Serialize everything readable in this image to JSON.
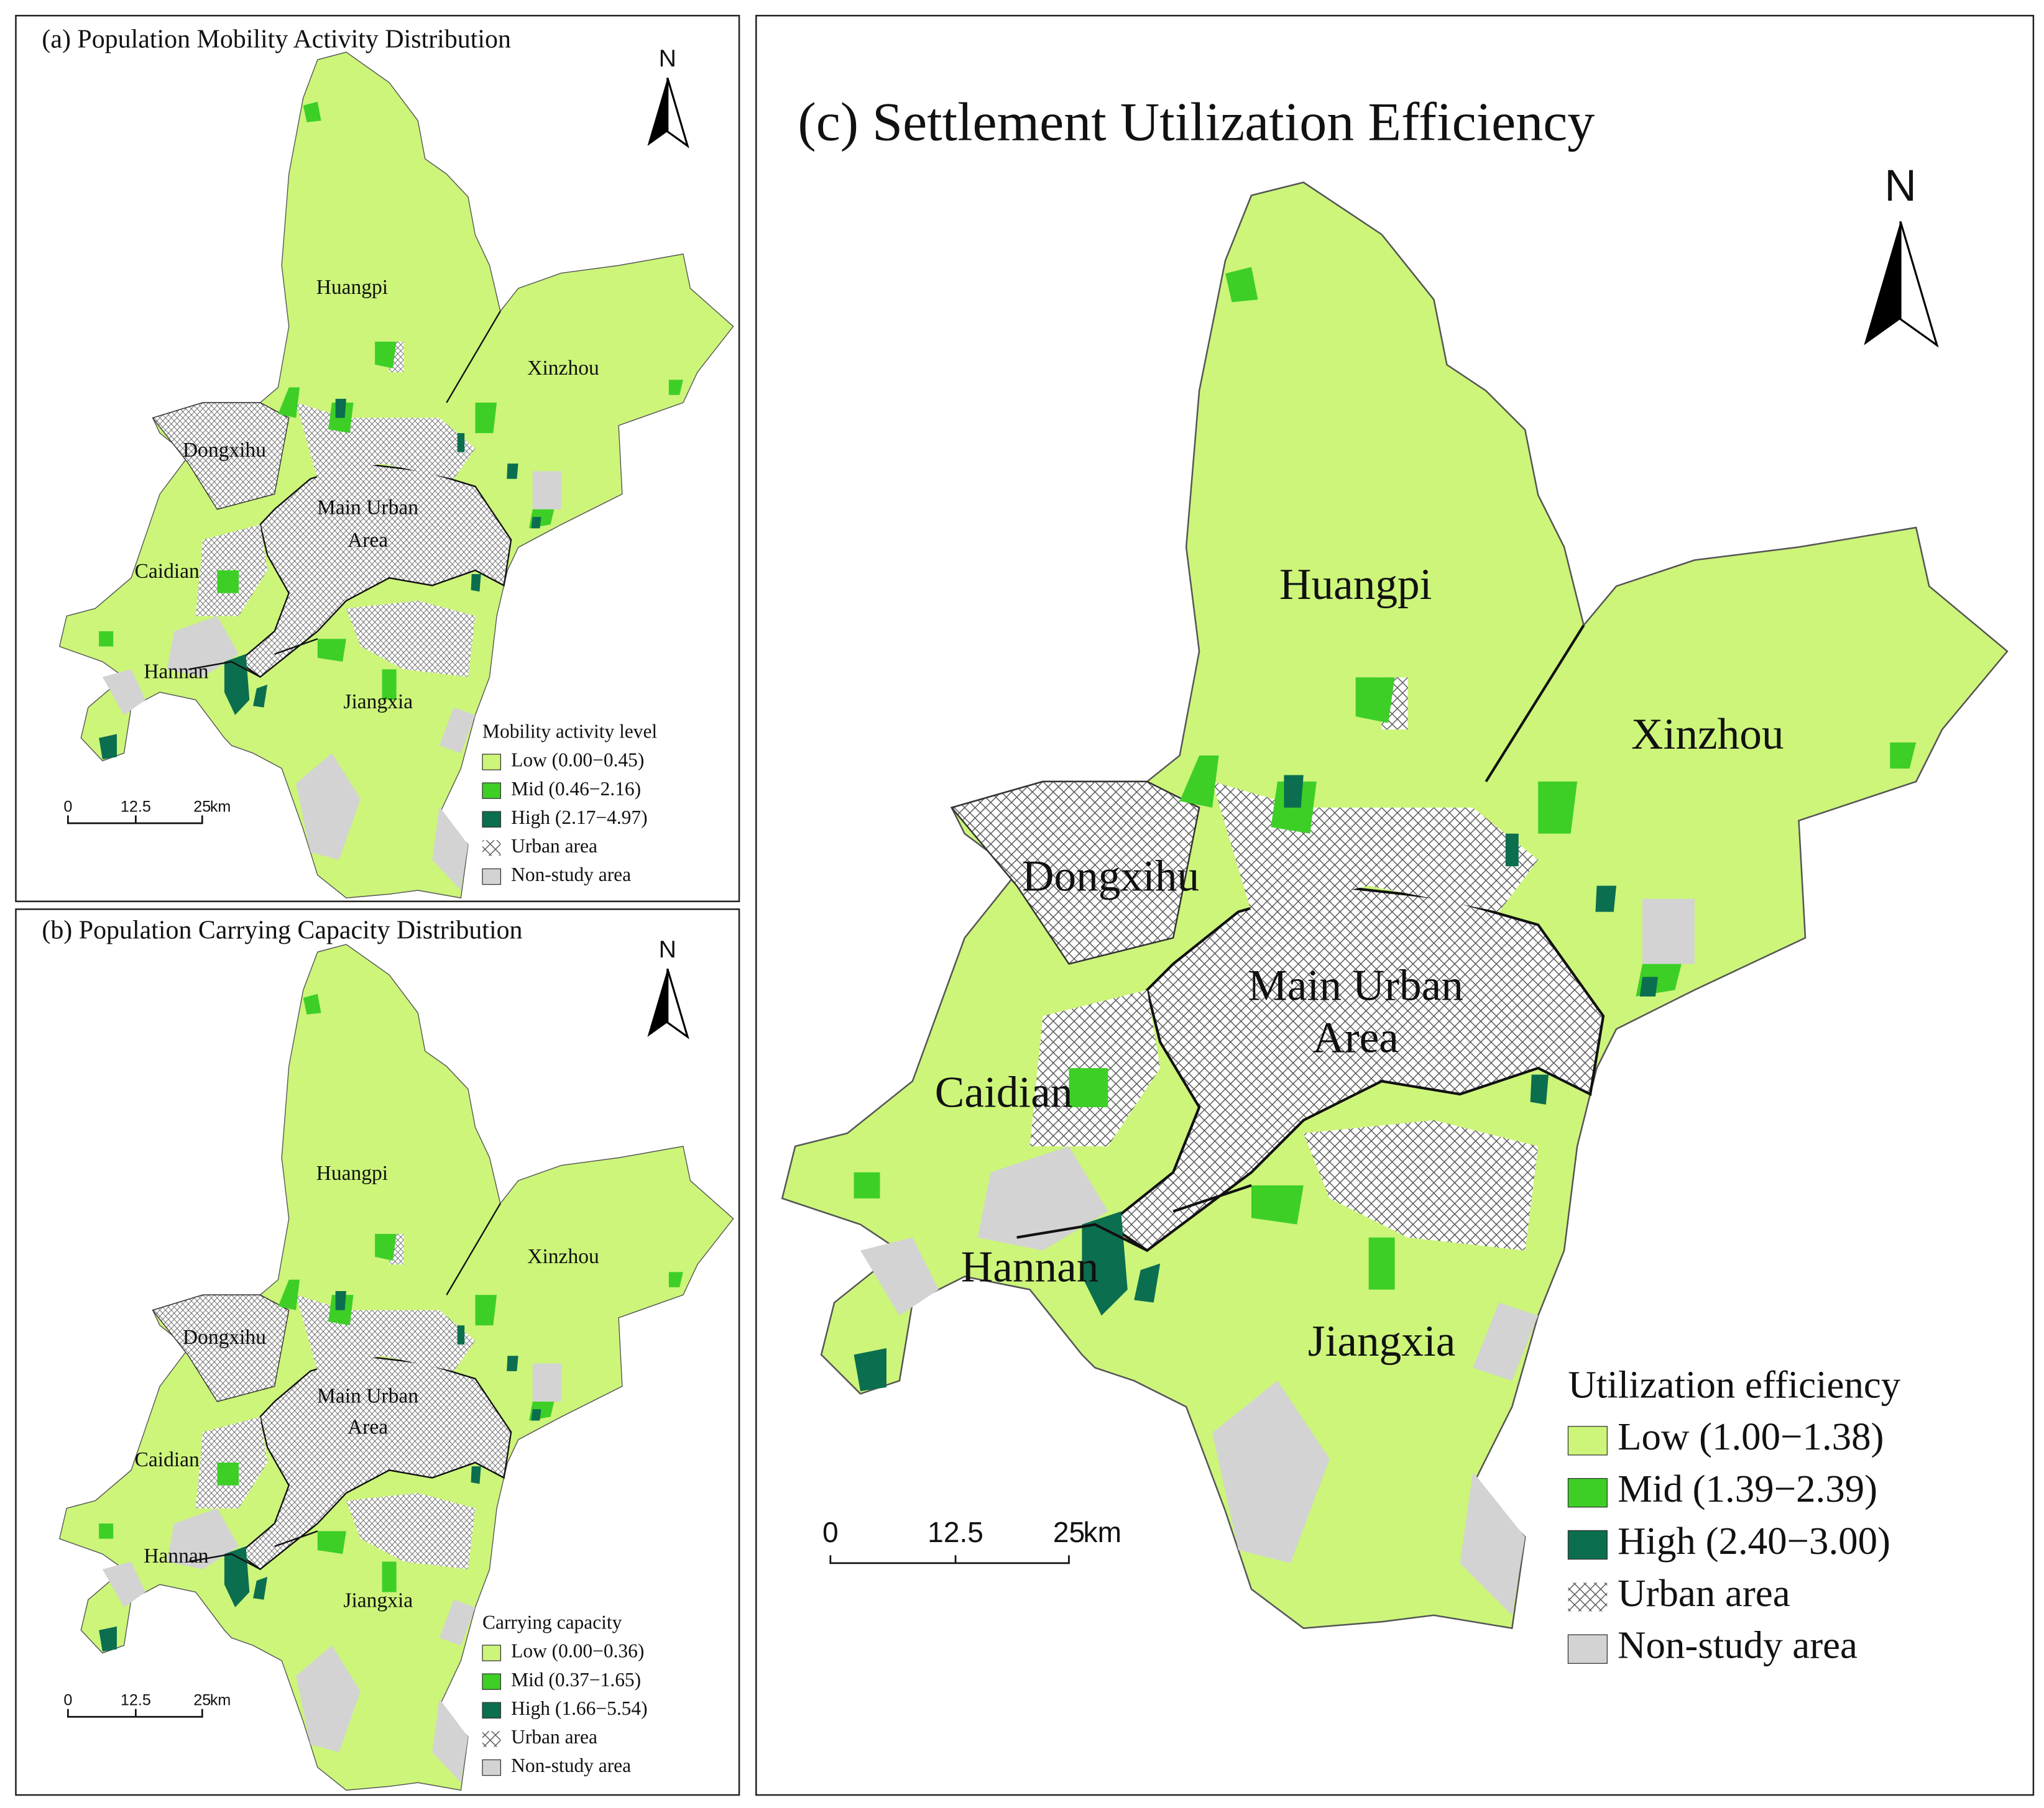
{
  "panels": [
    {
      "title": "(a) Population Mobility Activity Distribution",
      "north": "N",
      "districts": [
        "Huangpi",
        "Xinzhou",
        "Dongxihu",
        "Main Urban",
        "Area",
        "Caidian",
        "Hannan",
        "Jiangxia"
      ],
      "scale_bar": [
        "0",
        "12.5",
        "25",
        "km"
      ],
      "legend": {
        "title": "Mobility activity level",
        "items": [
          {
            "label": "Low (0.00−0.45)",
            "color": "#ccf57a"
          },
          {
            "label": "Mid (0.46−2.16)",
            "color": "#3ecf27"
          },
          {
            "label": "High (2.17−4.97)",
            "color": "#0b6e4f"
          },
          {
            "label": "Urban area"
          },
          {
            "label": "Non-study area",
            "color": "#d3d3d3"
          }
        ]
      }
    },
    {
      "title": "(b) Population Carrying Capacity Distribution",
      "north": "N",
      "districts": [
        "Huangpi",
        "Xinzhou",
        "Dongxihu",
        "Main Urban",
        "Area",
        "Caidian",
        "Hannan",
        "Jiangxia"
      ],
      "scale_bar": [
        "0",
        "12.5",
        "25",
        "km"
      ],
      "legend": {
        "title": "Carrying capacity",
        "items": [
          {
            "label": "Low (0.00−0.36)",
            "color": "#ccf57a"
          },
          {
            "label": "Mid (0.37−1.65)",
            "color": "#3ecf27"
          },
          {
            "label": "High (1.66−5.54)",
            "color": "#0b6e4f"
          },
          {
            "label": "Urban area"
          },
          {
            "label": "Non-study area",
            "color": "#d3d3d3"
          }
        ]
      }
    },
    {
      "title": "(c) Settlement Utilization Efficiency",
      "north": "N",
      "districts": [
        "Huangpi",
        "Xinzhou",
        "Dongxihu",
        "Main Urban",
        "Area",
        "Caidian",
        "Hannan",
        "Jiangxia"
      ],
      "scale_bar": [
        "0",
        "12.5",
        "25",
        "km"
      ],
      "legend": {
        "title": "Utilization efficiency",
        "items": [
          {
            "label": "Low (1.00−1.38)",
            "color": "#ccf57a"
          },
          {
            "label": "Mid (1.39−2.39)",
            "color": "#3ecf27"
          },
          {
            "label": "High (2.40−3.00)",
            "color": "#0b6e4f"
          },
          {
            "label": "Urban area"
          },
          {
            "label": "Non-study area",
            "color": "#d3d3d3"
          }
        ]
      }
    }
  ]
}
